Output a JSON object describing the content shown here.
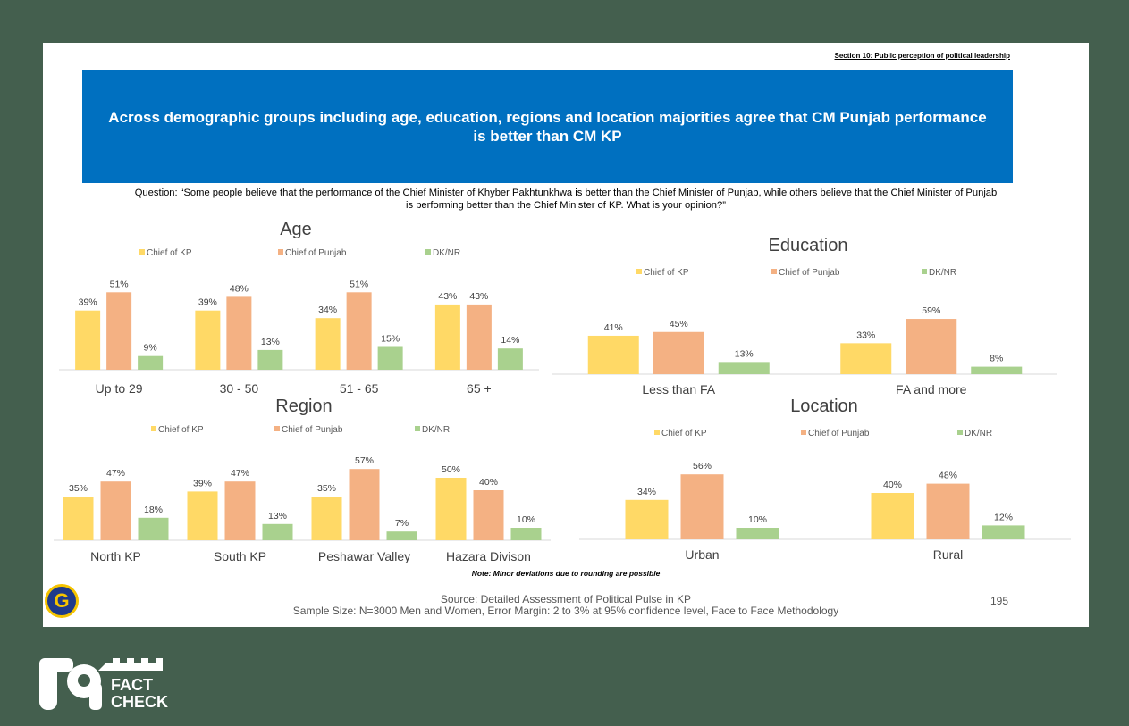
{
  "header": {
    "section": "Section 10: Public perception of political leadership",
    "title": "Across demographic groups including age, education, regions and location majorities agree that CM Punjab performance is better than CM KP",
    "question": "Question: “Some people believe that the performance of the Chief Minister of Khyber Pakhtunkhwa is better than the Chief Minister of Punjab, while others believe that the Chief Minister of Punjab is performing better than the Chief Minister of KP. What is your opinion?”"
  },
  "colors": {
    "kp": "#ffd966",
    "punjab": "#f4b183",
    "dk": "#a9d18e",
    "banner": "#0070c0",
    "background": "#445f4e"
  },
  "chart_data": [
    {
      "type": "bar",
      "title": "Age",
      "categories": [
        "Up to 29",
        "30 - 50",
        "51 - 65",
        "65 +"
      ],
      "series": [
        {
          "name": "Chief of KP",
          "values": [
            39,
            39,
            34,
            43
          ]
        },
        {
          "name": "Chief of Punjab",
          "values": [
            51,
            48,
            51,
            43
          ]
        },
        {
          "name": "DK/NR",
          "values": [
            9,
            13,
            15,
            14
          ]
        }
      ],
      "ylim": [
        0,
        100
      ]
    },
    {
      "type": "bar",
      "title": "Education",
      "categories": [
        "Less than FA",
        "FA and more"
      ],
      "series": [
        {
          "name": "Chief of KP",
          "values": [
            41,
            33
          ]
        },
        {
          "name": "Chief of Punjab",
          "values": [
            45,
            59
          ]
        },
        {
          "name": "DK/NR",
          "values": [
            13,
            8
          ]
        }
      ],
      "ylim": [
        0,
        100
      ]
    },
    {
      "type": "bar",
      "title": "Region",
      "categories": [
        "North KP",
        "South KP",
        "Peshawar Valley",
        "Hazara Divison"
      ],
      "series": [
        {
          "name": "Chief of KP",
          "values": [
            35,
            39,
            35,
            50
          ]
        },
        {
          "name": "Chief of Punjab",
          "values": [
            47,
            47,
            57,
            40
          ]
        },
        {
          "name": "DK/NR",
          "values": [
            18,
            13,
            7,
            10
          ]
        }
      ],
      "ylim": [
        0,
        100
      ]
    },
    {
      "type": "bar",
      "title": "Location",
      "categories": [
        "Urban",
        "Rural"
      ],
      "series": [
        {
          "name": "Chief of KP",
          "values": [
            34,
            40
          ]
        },
        {
          "name": "Chief of Punjab",
          "values": [
            56,
            48
          ]
        },
        {
          "name": "DK/NR",
          "values": [
            10,
            12
          ]
        }
      ],
      "ylim": [
        0,
        100
      ]
    }
  ],
  "footer": {
    "note": "Note: Minor deviations due to rounding are possible",
    "source": "Source: Detailed Assessment of Political Pulse in KP",
    "sample": "Sample Size: N=3000 Men and Women, Error Margin: 2 to 3% at 95% confidence level, Face to Face Methodology",
    "page": "195"
  },
  "logos": {
    "corner": "G",
    "fact_check": [
      "FACT",
      "CHECK"
    ]
  }
}
